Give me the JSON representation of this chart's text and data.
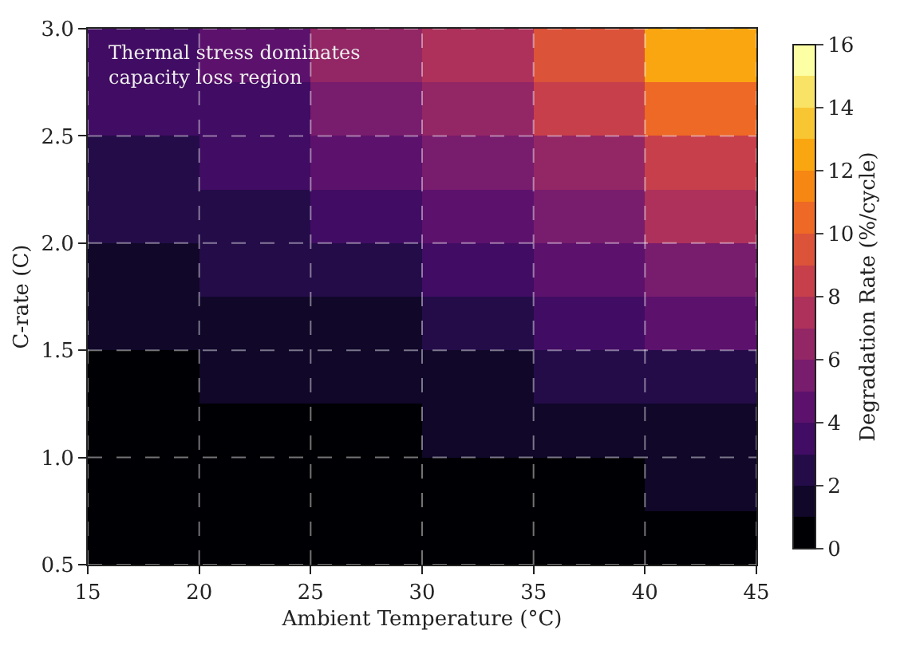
{
  "chart_data": {
    "type": "heatmap",
    "xlabel": "Ambient Temperature (°C)",
    "ylabel": "C-rate (C)",
    "clabel": "Degradation Rate (%/cycle)",
    "annotations": [
      "Thermal stress dominates\ncapacity loss region"
    ],
    "x": [
      17.5,
      22.5,
      27.5,
      32.5,
      37.5,
      42.5
    ],
    "y": [
      2.875,
      2.625,
      2.375,
      2.125,
      1.875,
      1.625,
      1.375,
      1.125,
      0.875,
      0.625
    ],
    "cells": [
      [
        3.6,
        4.7,
        6.0,
        7.7,
        9.9,
        12.7
      ],
      [
        3.0,
        3.9,
        5.0,
        6.5,
        8.3,
        10.6
      ],
      [
        2.5,
        3.2,
        4.1,
        5.3,
        6.8,
        8.7
      ],
      [
        2.0,
        2.6,
        3.3,
        4.2,
        5.4,
        7.0
      ],
      [
        1.6,
        2.0,
        2.6,
        3.3,
        4.2,
        5.4
      ],
      [
        1.2,
        1.5,
        1.9,
        2.5,
        3.2,
        4.1
      ],
      [
        0.8,
        1.1,
        1.4,
        1.8,
        2.3,
        2.9
      ],
      [
        0.6,
        0.7,
        0.9,
        1.2,
        1.5,
        1.9
      ],
      [
        0.3,
        0.4,
        0.6,
        0.7,
        0.9,
        1.2
      ],
      [
        0.2,
        0.2,
        0.3,
        0.4,
        0.5,
        0.6
      ]
    ],
    "xlim": [
      15,
      45
    ],
    "xticks": [
      15,
      20,
      25,
      30,
      35,
      40,
      45
    ],
    "ylim": [
      0.5,
      3.0
    ],
    "yticks": [
      {
        "value": 0.5,
        "label": "0.5"
      },
      {
        "value": 1.0,
        "label": "1.0"
      },
      {
        "value": 1.5,
        "label": "1.5"
      },
      {
        "value": 2.0,
        "label": "2.0"
      },
      {
        "value": 2.5,
        "label": "2.5"
      },
      {
        "value": 3.0,
        "label": "3.0"
      }
    ],
    "clim": [
      0,
      16
    ],
    "cticks": [
      0,
      2,
      4,
      6,
      8,
      10,
      12,
      14,
      16
    ],
    "grid": true
  }
}
